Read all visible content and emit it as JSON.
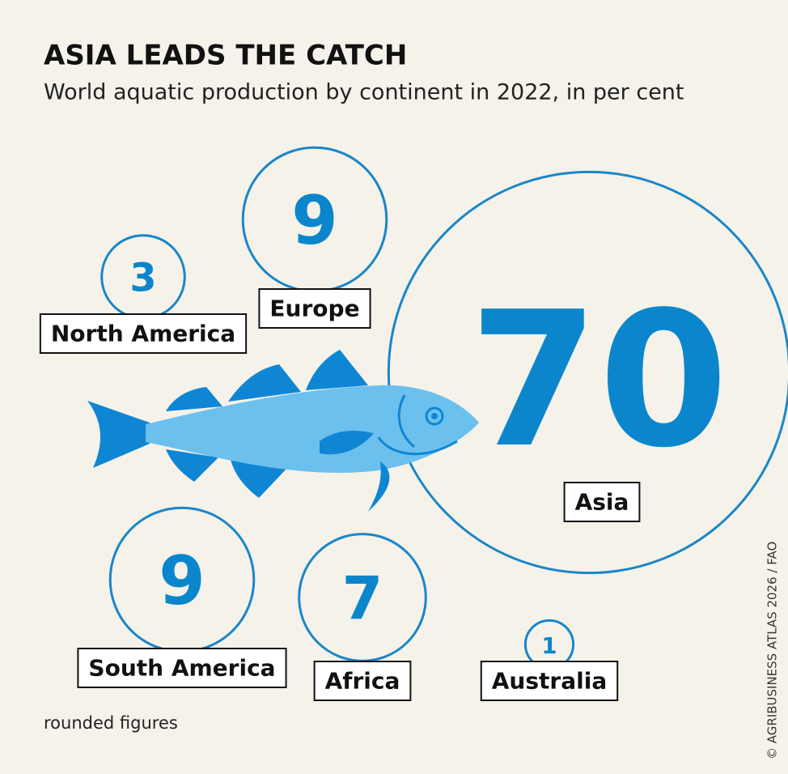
{
  "chart_data": {
    "type": "bubble",
    "title": "ASIA LEADS THE CATCH",
    "subtitle": "World aquatic production by continent in 2022, in per cent",
    "categories": [
      "North America",
      "Europe",
      "Asia",
      "South America",
      "Africa",
      "Australia"
    ],
    "values": [
      3,
      9,
      70,
      9,
      7,
      1
    ],
    "color": "#1a86c8",
    "note": "rounded figures",
    "source": "© AGRIBUSINESS ATLAS 2026 / FAO"
  }
}
